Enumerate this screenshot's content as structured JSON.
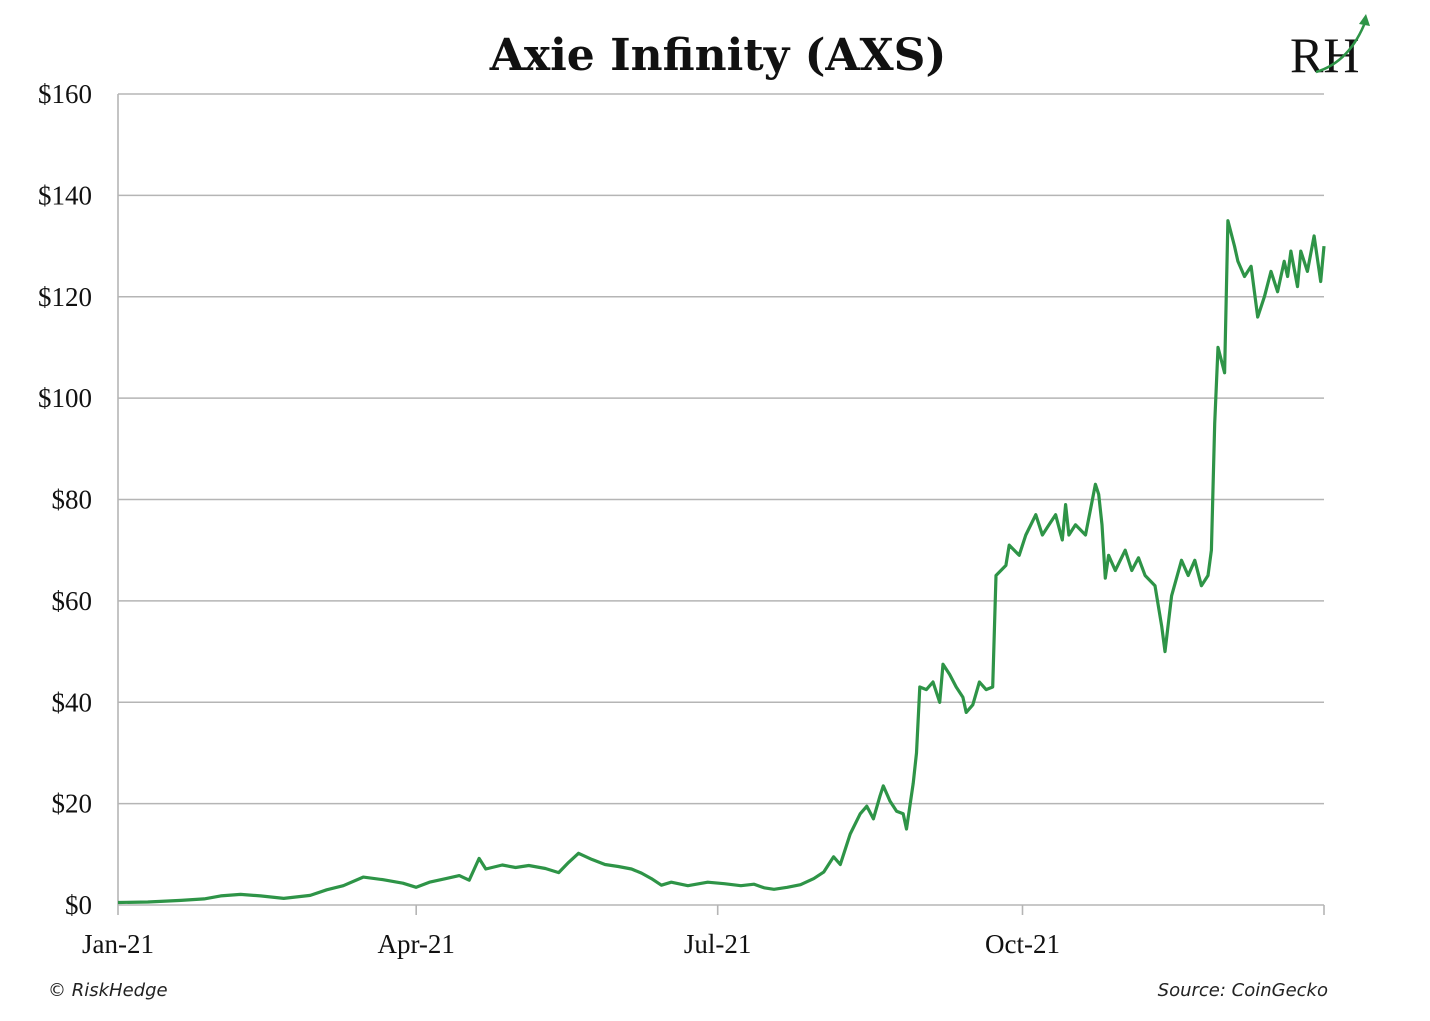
{
  "chart_data": {
    "type": "line",
    "title": "Axie Infinity (AXS)",
    "xlabel": "",
    "ylabel": "",
    "ylim": [
      0,
      160
    ],
    "y_ticks": [
      0,
      20,
      40,
      60,
      80,
      100,
      120,
      140,
      160
    ],
    "y_tick_labels": [
      "$0",
      "$20",
      "$40",
      "$60",
      "$80",
      "$100",
      "$120",
      "$140",
      "$160"
    ],
    "x_range": [
      "2021-01-01",
      "2021-12-31"
    ],
    "x_ticks": [
      {
        "date": "2021-01-01",
        "label": "Jan-21"
      },
      {
        "date": "2021-04-01",
        "label": "Apr-21"
      },
      {
        "date": "2021-07-01",
        "label": "Jul-21"
      },
      {
        "date": "2021-10-01",
        "label": "Oct-21"
      },
      {
        "date": "2021-12-31",
        "label": ""
      }
    ],
    "grid": "horizontal",
    "legend": "none",
    "series": [
      {
        "color": "#2e9447",
        "points": [
          [
            "2021-01-01",
            0.5
          ],
          [
            "2021-01-10",
            0.6
          ],
          [
            "2021-01-20",
            0.9
          ],
          [
            "2021-01-27",
            1.2
          ],
          [
            "2021-02-01",
            1.8
          ],
          [
            "2021-02-07",
            2.1
          ],
          [
            "2021-02-13",
            1.8
          ],
          [
            "2021-02-20",
            1.3
          ],
          [
            "2021-02-28",
            1.9
          ],
          [
            "2021-03-05",
            3.0
          ],
          [
            "2021-03-10",
            3.8
          ],
          [
            "2021-03-16",
            5.5
          ],
          [
            "2021-03-22",
            5.0
          ],
          [
            "2021-03-28",
            4.3
          ],
          [
            "2021-04-01",
            3.5
          ],
          [
            "2021-04-05",
            4.5
          ],
          [
            "2021-04-10",
            5.2
          ],
          [
            "2021-04-14",
            5.8
          ],
          [
            "2021-04-17",
            4.9
          ],
          [
            "2021-04-20",
            9.2
          ],
          [
            "2021-04-22",
            7.1
          ],
          [
            "2021-04-27",
            7.9
          ],
          [
            "2021-05-01",
            7.4
          ],
          [
            "2021-05-05",
            7.8
          ],
          [
            "2021-05-10",
            7.2
          ],
          [
            "2021-05-14",
            6.4
          ],
          [
            "2021-05-17",
            8.4
          ],
          [
            "2021-05-20",
            10.2
          ],
          [
            "2021-05-24",
            9.0
          ],
          [
            "2021-05-28",
            8.0
          ],
          [
            "2021-06-01",
            7.6
          ],
          [
            "2021-06-05",
            7.1
          ],
          [
            "2021-06-08",
            6.3
          ],
          [
            "2021-06-11",
            5.2
          ],
          [
            "2021-06-14",
            3.9
          ],
          [
            "2021-06-17",
            4.5
          ],
          [
            "2021-06-22",
            3.8
          ],
          [
            "2021-06-28",
            4.5
          ],
          [
            "2021-07-03",
            4.2
          ],
          [
            "2021-07-08",
            3.8
          ],
          [
            "2021-07-12",
            4.1
          ],
          [
            "2021-07-15",
            3.4
          ],
          [
            "2021-07-18",
            3.1
          ],
          [
            "2021-07-22",
            3.5
          ],
          [
            "2021-07-26",
            4.0
          ],
          [
            "2021-07-30",
            5.2
          ],
          [
            "2021-08-02",
            6.5
          ],
          [
            "2021-08-05",
            9.5
          ],
          [
            "2021-08-07",
            8.0
          ],
          [
            "2021-08-10",
            14.0
          ],
          [
            "2021-08-13",
            18.0
          ],
          [
            "2021-08-15",
            19.5
          ],
          [
            "2021-08-17",
            17.0
          ],
          [
            "2021-08-19",
            21.5
          ],
          [
            "2021-08-20",
            23.5
          ],
          [
            "2021-08-22",
            20.5
          ],
          [
            "2021-08-24",
            18.5
          ],
          [
            "2021-08-26",
            18.0
          ],
          [
            "2021-08-27",
            15.0
          ],
          [
            "2021-08-29",
            24.0
          ],
          [
            "2021-08-30",
            30.0
          ],
          [
            "2021-08-31",
            43.0
          ],
          [
            "2021-09-02",
            42.5
          ],
          [
            "2021-09-04",
            44.0
          ],
          [
            "2021-09-06",
            40.0
          ],
          [
            "2021-09-07",
            47.5
          ],
          [
            "2021-09-09",
            45.5
          ],
          [
            "2021-09-11",
            43.0
          ],
          [
            "2021-09-13",
            41.0
          ],
          [
            "2021-09-14",
            38.0
          ],
          [
            "2021-09-16",
            39.5
          ],
          [
            "2021-09-18",
            44.0
          ],
          [
            "2021-09-20",
            42.5
          ],
          [
            "2021-09-22",
            43.0
          ],
          [
            "2021-09-23",
            65.0
          ],
          [
            "2021-09-26",
            67.0
          ],
          [
            "2021-09-27",
            71.0
          ],
          [
            "2021-09-30",
            69.0
          ],
          [
            "2021-10-02",
            73.0
          ],
          [
            "2021-10-05",
            77.0
          ],
          [
            "2021-10-07",
            73.0
          ],
          [
            "2021-10-09",
            75.0
          ],
          [
            "2021-10-11",
            77.0
          ],
          [
            "2021-10-13",
            72.0
          ],
          [
            "2021-10-14",
            79.0
          ],
          [
            "2021-10-15",
            73.0
          ],
          [
            "2021-10-17",
            75.0
          ],
          [
            "2021-10-20",
            73.0
          ],
          [
            "2021-10-23",
            83.0
          ],
          [
            "2021-10-24",
            81.0
          ],
          [
            "2021-10-25",
            75.0
          ],
          [
            "2021-10-26",
            64.5
          ],
          [
            "2021-10-27",
            69.0
          ],
          [
            "2021-10-29",
            66.0
          ],
          [
            "2021-11-01",
            70.0
          ],
          [
            "2021-11-03",
            66.0
          ],
          [
            "2021-11-05",
            68.5
          ],
          [
            "2021-11-07",
            65.0
          ],
          [
            "2021-11-10",
            63.0
          ],
          [
            "2021-11-12",
            55.0
          ],
          [
            "2021-11-13",
            50.0
          ],
          [
            "2021-11-15",
            61.0
          ],
          [
            "2021-11-18",
            68.0
          ],
          [
            "2021-11-20",
            65.0
          ],
          [
            "2021-11-22",
            68.0
          ],
          [
            "2021-11-24",
            63.0
          ],
          [
            "2021-11-26",
            65.0
          ],
          [
            "2021-11-27",
            70.0
          ],
          [
            "2021-11-28",
            95.0
          ],
          [
            "2021-11-29",
            110.0
          ],
          [
            "2021-12-01",
            105.0
          ],
          [
            "2021-12-02",
            135.0
          ],
          [
            "2021-12-04",
            130.0
          ],
          [
            "2021-12-05",
            127.0
          ],
          [
            "2021-12-07",
            124.0
          ],
          [
            "2021-12-09",
            126.0
          ],
          [
            "2021-12-10",
            121.0
          ],
          [
            "2021-12-11",
            116.0
          ],
          [
            "2021-12-13",
            120.0
          ],
          [
            "2021-12-15",
            125.0
          ],
          [
            "2021-12-17",
            121.0
          ],
          [
            "2021-12-19",
            127.0
          ],
          [
            "2021-12-20",
            124.0
          ],
          [
            "2021-12-21",
            129.0
          ],
          [
            "2021-12-23",
            122.0
          ],
          [
            "2021-12-24",
            129.0
          ],
          [
            "2021-12-26",
            125.0
          ],
          [
            "2021-12-28",
            132.0
          ],
          [
            "2021-12-30",
            123.0
          ],
          [
            "2021-12-31",
            130.0
          ]
        ]
      }
    ]
  },
  "footer": {
    "copyright": "© RiskHedge",
    "source": "Source: CoinGecko"
  },
  "logo": {
    "text": "RH"
  }
}
